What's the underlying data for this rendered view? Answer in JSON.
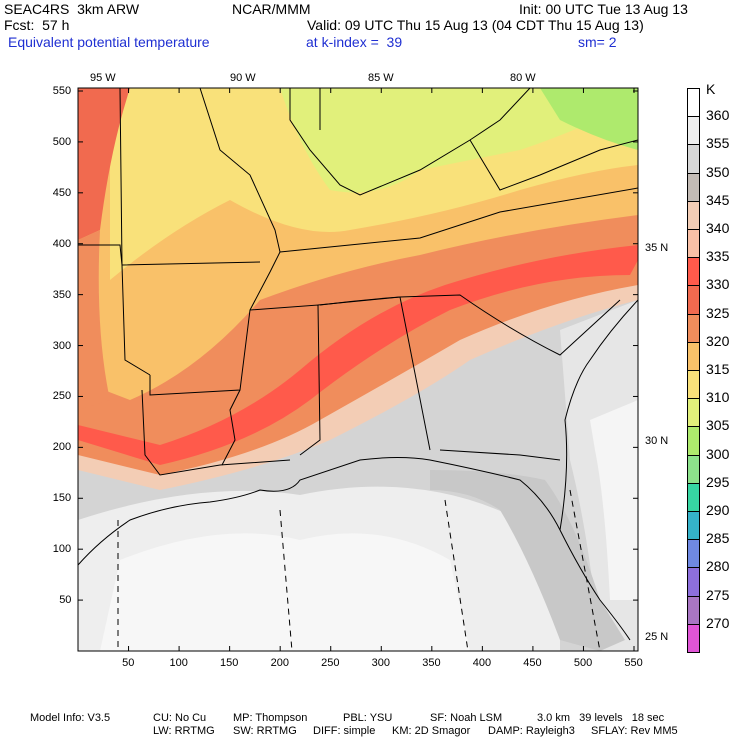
{
  "header": {
    "model": "SEAC4RS  3km ARW",
    "org": "NCAR/MMM",
    "init": "Init: 00 UTC Tue 13 Aug 13",
    "fcst": "Fcst:  57 h",
    "valid": "Valid: 09 UTC Thu 15 Aug 13 (04 CDT Thu 15 Aug 13)",
    "field": "Equivalent potential temperature",
    "level": "at k-index =  39",
    "smooth": "sm= 2"
  },
  "map": {
    "lon_labels": [
      "95 W",
      "90 W",
      "85 W",
      "80 W"
    ],
    "lat_labels": [
      "35 N",
      "30 N",
      "25 N"
    ],
    "x_ticks": [
      "50",
      "100",
      "150",
      "200",
      "250",
      "300",
      "350",
      "400",
      "450",
      "500",
      "550"
    ],
    "y_ticks": [
      "550",
      "500",
      "450",
      "400",
      "350",
      "300",
      "250",
      "200",
      "150",
      "100",
      "50"
    ]
  },
  "colorbar": {
    "unit": "K",
    "levels": [
      "360",
      "355",
      "350",
      "345",
      "340",
      "335",
      "330",
      "325",
      "320",
      "315",
      "310",
      "305",
      "300",
      "295",
      "290",
      "285",
      "280",
      "275",
      "270"
    ],
    "colors": [
      "#ffffff",
      "#efefef",
      "#d7d7d7",
      "#c3bbb5",
      "#f3cdb5",
      "#f9c0a6",
      "#ff5a4b",
      "#f16a4f",
      "#f08d5c",
      "#f9c169",
      "#f9e17a",
      "#e1f07b",
      "#aeea6d",
      "#8de28b",
      "#37d6a2",
      "#35b2c9",
      "#6f89e2",
      "#8d6fdc",
      "#a976c3",
      "#e055d6"
    ]
  },
  "footer": {
    "line1": [
      "Model Info: V3.5",
      "CU: No Cu",
      "MP: Thompson",
      "PBL: YSU",
      "SF: Noah LSM",
      "3.0 km   39 levels   18 sec"
    ],
    "line2": [
      "LW: RRTMG",
      "SW: RRTMG",
      "DIFF: simple",
      "KM: 2D Smagor",
      "DAMP: Rayleigh3",
      "SFLAY: Rev MM5"
    ]
  }
}
